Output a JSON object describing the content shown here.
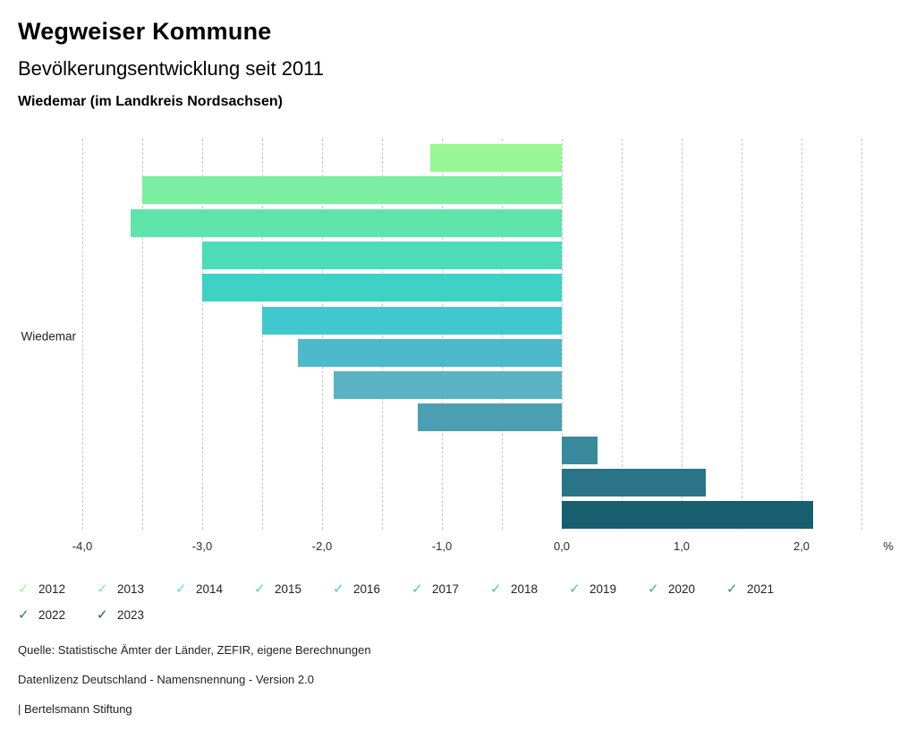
{
  "header": {
    "title": "Wegweiser Kommune",
    "subtitle": "Bevölkerungsentwicklung seit 2011",
    "region": "Wiedemar (im Landkreis Nordsachsen)"
  },
  "chart_data": {
    "type": "bar",
    "orientation": "horizontal",
    "title": "Bevölkerungsentwicklung seit 2011",
    "region_label": "Wiedemar",
    "categories": [
      "2012",
      "2013",
      "2014",
      "2015",
      "2016",
      "2017",
      "2018",
      "2019",
      "2020",
      "2021",
      "2022",
      "2023"
    ],
    "values": [
      -1.1,
      -3.5,
      -3.6,
      -3.0,
      -3.0,
      -2.5,
      -2.2,
      -1.9,
      -1.2,
      0.3,
      1.2,
      2.1
    ],
    "colors": [
      "#99F695",
      "#7CEEA3",
      "#5FE4AC",
      "#4CDCB8",
      "#3DD2C4",
      "#40C8CE",
      "#4DB9CA",
      "#5BB2C5",
      "#4A9FB3",
      "#3A8A9D",
      "#2A7487",
      "#175E6E"
    ],
    "xlim": [
      -4.0,
      2.5
    ],
    "grid_step": 0.5,
    "grid": true,
    "tick_values": [
      -4,
      -3,
      -2,
      -1,
      0,
      1,
      2
    ],
    "tick_labels": [
      "-4,0",
      "-3,0",
      "-2,0",
      "-1,0",
      "0,0",
      "1,0",
      "2,0"
    ],
    "axis_unit_label": "%",
    "legend_position": "bottom",
    "legend_check_icon": "✓"
  },
  "footer": {
    "source": "Quelle: Statistische Ämter der Länder, ZEFIR, eigene Berechnungen",
    "license": "Datenlizenz Deutschland - Namensnennung - Version 2.0",
    "publisher": "| Bertelsmann Stiftung"
  }
}
